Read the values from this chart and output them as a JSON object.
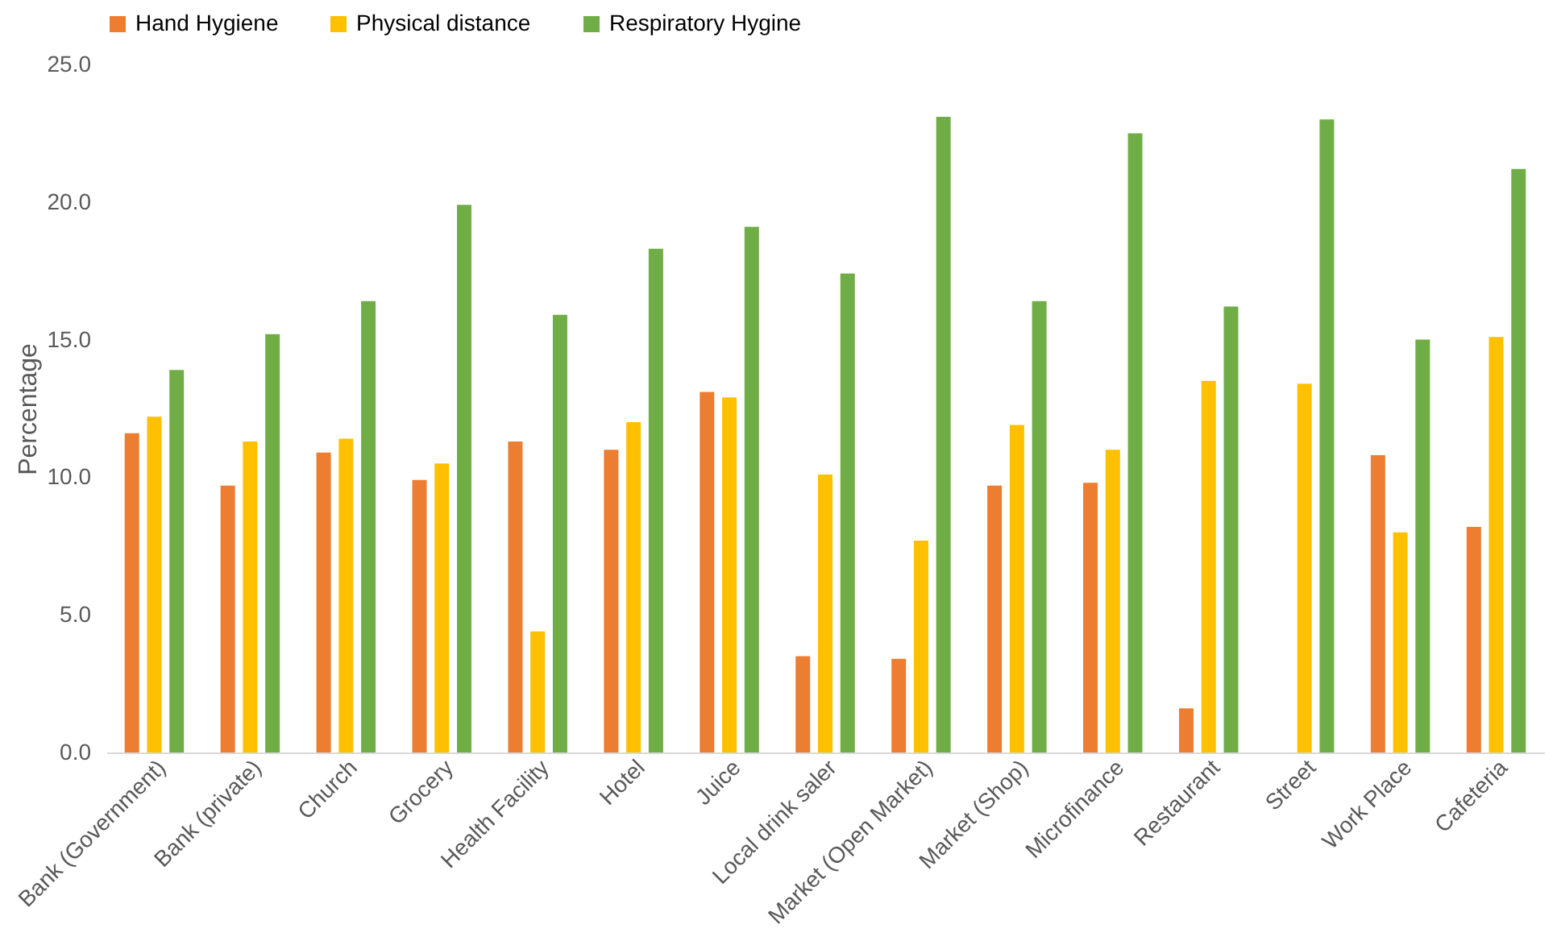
{
  "chart_data": {
    "type": "bar",
    "ylabel": "Percentage",
    "legend": "top",
    "grid": false,
    "categories": [
      "Bank (Government)",
      "Bank (private)",
      "Church",
      "Grocery",
      "Health Facility",
      "Hotel",
      "Juice",
      "Local drink saler",
      "Market (Open Market)",
      "Market (Shop)",
      "Microfinance",
      "Restaurant",
      "Street",
      "Work Place",
      "Cafeteria"
    ],
    "ylim": [
      0,
      25
    ],
    "yticks": [
      {
        "value": 0,
        "label": "0.0"
      },
      {
        "value": 5,
        "label": "5.0"
      },
      {
        "value": 10,
        "label": "10.0"
      },
      {
        "value": 15,
        "label": "15.0"
      },
      {
        "value": 20,
        "label": "20.0"
      },
      {
        "value": 25,
        "label": "25.0"
      }
    ],
    "series": [
      {
        "name": "Hand Hygiene",
        "color": "#ed7d31",
        "values": [
          11.6,
          9.7,
          10.9,
          9.9,
          11.3,
          11.0,
          13.1,
          3.5,
          3.4,
          9.7,
          9.8,
          1.6,
          null,
          10.8,
          8.2
        ]
      },
      {
        "name": "Physical distance",
        "color": "#ffc000",
        "values": [
          12.2,
          11.3,
          11.4,
          10.5,
          4.4,
          12.0,
          12.9,
          10.1,
          7.7,
          11.9,
          11.0,
          13.5,
          13.4,
          8.0,
          15.1
        ]
      },
      {
        "name": "Respiratory Hygine",
        "color": "#70ad47",
        "values": [
          13.9,
          15.2,
          16.4,
          19.9,
          15.9,
          18.3,
          19.1,
          17.4,
          23.1,
          16.4,
          22.5,
          16.2,
          23.0,
          15.0,
          21.2
        ]
      }
    ]
  }
}
